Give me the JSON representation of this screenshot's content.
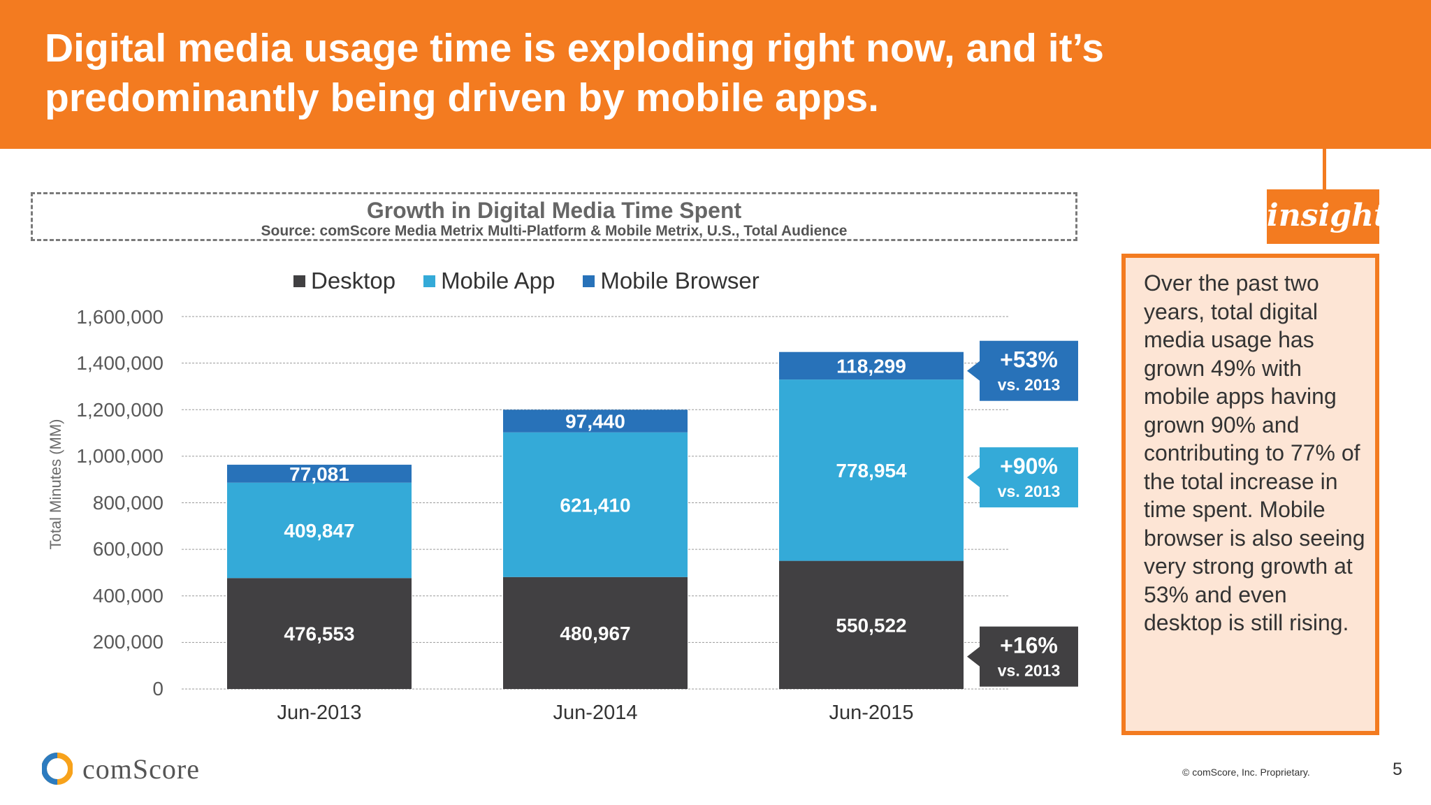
{
  "header": {
    "title": "Digital media usage time is exploding right now, and it’s predominantly being driven by mobile apps."
  },
  "chart_data": {
    "type": "bar",
    "stacked": true,
    "title": "Growth in Digital Media Time Spent",
    "subtitle": "Source: comScore Media Metrix Multi-Platform & Mobile Metrix, U.S., Total Audience",
    "xlabel": "",
    "ylabel": "Total Minutes (MM)",
    "ylim": [
      0,
      1600000
    ],
    "yticks": [
      "0",
      "200,000",
      "400,000",
      "600,000",
      "800,000",
      "1,000,000",
      "1,200,000",
      "1,400,000",
      "1,600,000"
    ],
    "categories": [
      "Jun-2013",
      "Jun-2014",
      "Jun-2015"
    ],
    "legend_position": "top",
    "series": [
      {
        "name": "Desktop",
        "color": "#414042",
        "values": [
          476553,
          480967,
          550522
        ],
        "labels": [
          "476,553",
          "480,967",
          "550,522"
        ]
      },
      {
        "name": "Mobile App",
        "color": "#34AAD8",
        "values": [
          409847,
          621410,
          778954
        ],
        "labels": [
          "409,847",
          "621,410",
          "778,954"
        ]
      },
      {
        "name": "Mobile Browser",
        "color": "#2872B9",
        "values": [
          77081,
          97440,
          118299
        ],
        "labels": [
          "77,081",
          "97,440",
          "118,299"
        ]
      }
    ],
    "annotations": [
      {
        "series": "Mobile Browser",
        "pct": "+53%",
        "vs": "vs. 2013",
        "color": "#2872B9"
      },
      {
        "series": "Mobile App",
        "pct": "+90%",
        "vs": "vs. 2013",
        "color": "#34AAD8"
      },
      {
        "series": "Desktop",
        "pct": "+16%",
        "vs": "vs. 2013",
        "color": "#414042"
      }
    ]
  },
  "insight": {
    "badge": "insight",
    "text": "Over the past two years, total digital media usage has grown 49% with mobile apps having grown 90% and contributing to 77% of the total increase in time spent. Mobile browser is also seeing very strong growth at 53% and even desktop is still rising."
  },
  "footer": {
    "brand": "comScore",
    "copyright": "© comScore, Inc. Proprietary.",
    "page": "5"
  },
  "colors": {
    "accent": "#F37B20",
    "panel": "#FDE5D5"
  }
}
